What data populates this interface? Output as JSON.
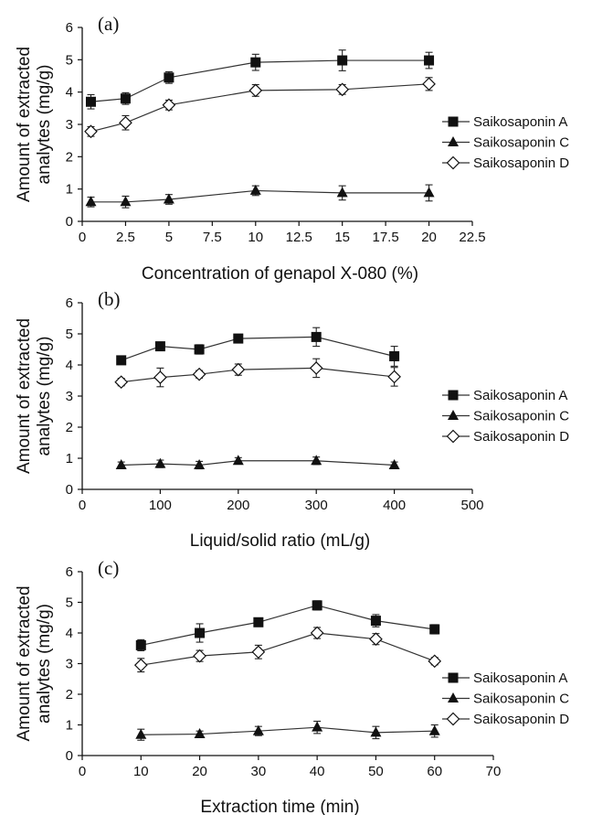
{
  "chart_data": [
    {
      "type": "line",
      "panel_label": "(a)",
      "xlabel": "Concentration of genapol X-080 (%)",
      "ylabel": "Amount of extracted analytes (mg/g)",
      "xlim": [
        0,
        22.5
      ],
      "ylim": [
        0,
        6
      ],
      "xticks": [
        "0",
        "2.5",
        "5",
        "7.5",
        "10",
        "12.5",
        "15",
        "17.5",
        "20",
        "22.5"
      ],
      "yticks": [
        "0",
        "1",
        "2",
        "3",
        "4",
        "5",
        "6"
      ],
      "x": [
        0.5,
        2.5,
        5,
        10,
        15,
        20
      ],
      "grid": false,
      "legend_position": "right",
      "series": [
        {
          "name": "Saikosaponin A",
          "marker": "square",
          "values": [
            3.7,
            3.8,
            4.45,
            4.92,
            4.98,
            4.98
          ],
          "errors": [
            0.22,
            0.18,
            0.18,
            0.25,
            0.32,
            0.25
          ]
        },
        {
          "name": "Saikosaponin C",
          "marker": "triangle",
          "values": [
            0.6,
            0.6,
            0.68,
            0.95,
            0.88,
            0.88
          ],
          "errors": [
            0.15,
            0.18,
            0.15,
            0.15,
            0.22,
            0.25
          ]
        },
        {
          "name": "Saikosaponin D",
          "marker": "diamond",
          "values": [
            2.78,
            3.05,
            3.6,
            4.05,
            4.08,
            4.25
          ],
          "errors": [
            0.15,
            0.22,
            0.15,
            0.18,
            0.15,
            0.2
          ]
        }
      ]
    },
    {
      "type": "line",
      "panel_label": "(b)",
      "xlabel": "Liquid/solid ratio (mL/g)",
      "ylabel": "Amount of extracted analytes (mg/g)",
      "xlim": [
        0,
        500
      ],
      "ylim": [
        0,
        6
      ],
      "xticks": [
        "0",
        "100",
        "200",
        "300",
        "400",
        "500"
      ],
      "yticks": [
        "0",
        "1",
        "2",
        "3",
        "4",
        "5",
        "6"
      ],
      "x": [
        50,
        100,
        150,
        200,
        300,
        400
      ],
      "grid": false,
      "legend_position": "right",
      "series": [
        {
          "name": "Saikosaponin A",
          "marker": "square",
          "values": [
            4.15,
            4.6,
            4.5,
            4.85,
            4.9,
            4.28
          ],
          "errors": [
            0.1,
            0.12,
            0.15,
            0.12,
            0.3,
            0.32
          ]
        },
        {
          "name": "Saikosaponin C",
          "marker": "triangle",
          "values": [
            0.78,
            0.82,
            0.78,
            0.92,
            0.92,
            0.78
          ],
          "errors": [
            0.1,
            0.12,
            0.12,
            0.1,
            0.12,
            0.1
          ]
        },
        {
          "name": "Saikosaponin D",
          "marker": "diamond",
          "values": [
            3.45,
            3.6,
            3.7,
            3.85,
            3.9,
            3.62
          ],
          "errors": [
            0.12,
            0.3,
            0.12,
            0.18,
            0.3,
            0.3
          ]
        }
      ]
    },
    {
      "type": "line",
      "panel_label": "(c)",
      "xlabel": "Extraction time (min)",
      "ylabel": "Amount of extracted analytes (mg/g)",
      "xlim": [
        0,
        70
      ],
      "ylim": [
        0,
        6
      ],
      "xticks": [
        "0",
        "10",
        "20",
        "30",
        "40",
        "50",
        "60",
        "70"
      ],
      "yticks": [
        "0",
        "1",
        "2",
        "3",
        "4",
        "5",
        "6"
      ],
      "x": [
        10,
        20,
        30,
        40,
        50,
        60
      ],
      "grid": false,
      "legend_position": "right",
      "series": [
        {
          "name": "Saikosaponin A",
          "marker": "square",
          "values": [
            3.6,
            4.0,
            4.35,
            4.9,
            4.4,
            4.12
          ],
          "errors": [
            0.18,
            0.3,
            0.12,
            0.15,
            0.2,
            0.15
          ]
        },
        {
          "name": "Saikosaponin C",
          "marker": "triangle",
          "values": [
            0.68,
            0.7,
            0.8,
            0.92,
            0.75,
            0.8
          ],
          "errors": [
            0.18,
            0.1,
            0.15,
            0.2,
            0.2,
            0.2
          ]
        },
        {
          "name": "Saikosaponin D",
          "marker": "diamond",
          "values": [
            2.95,
            3.25,
            3.38,
            4.0,
            3.8,
            3.08
          ],
          "errors": [
            0.22,
            0.18,
            0.22,
            0.18,
            0.18,
            0.12
          ]
        }
      ]
    }
  ]
}
